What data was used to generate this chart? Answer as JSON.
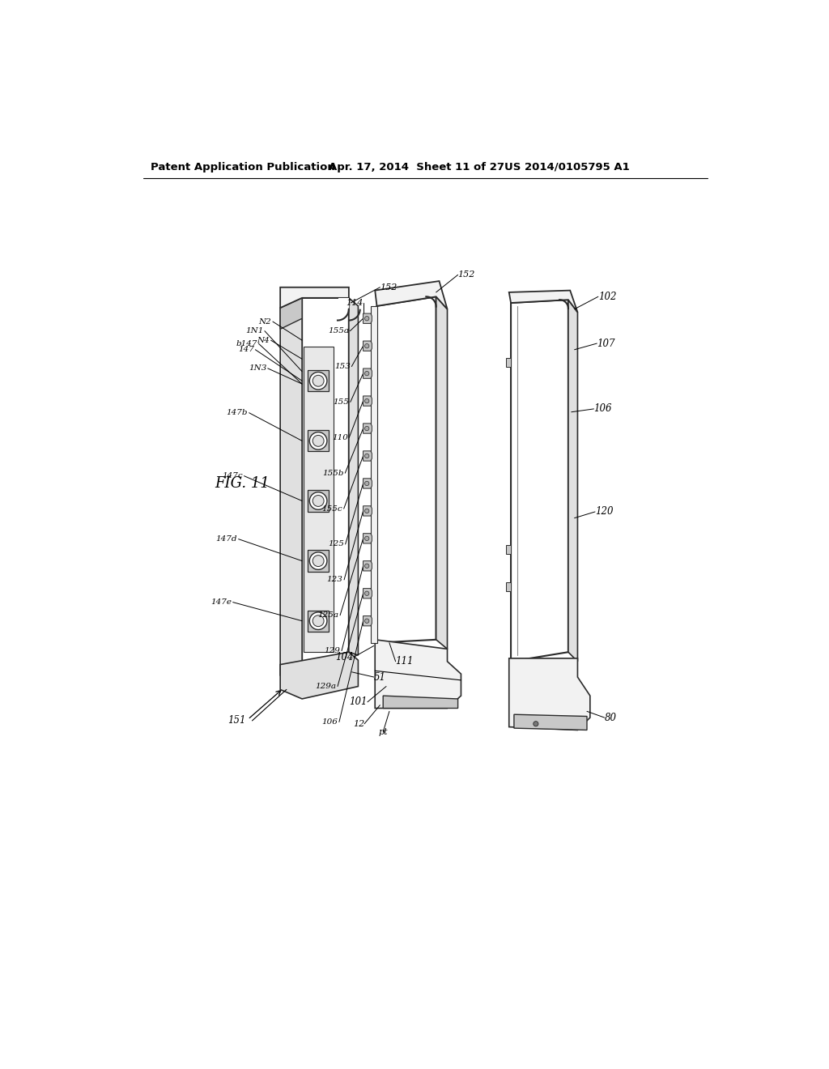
{
  "bg_color": "#ffffff",
  "header_left": "Patent Application Publication",
  "header_mid": "Apr. 17, 2014  Sheet 11 of 27",
  "header_right": "US 2014/0105795 A1",
  "fig_label": "FIG. 11",
  "lc": "#2a2a2a",
  "fill_white": "#ffffff",
  "fill_light": "#f2f2f2",
  "fill_med": "#e0e0e0",
  "fill_dark": "#c8c8c8",
  "fill_darker": "#aaaaaa"
}
